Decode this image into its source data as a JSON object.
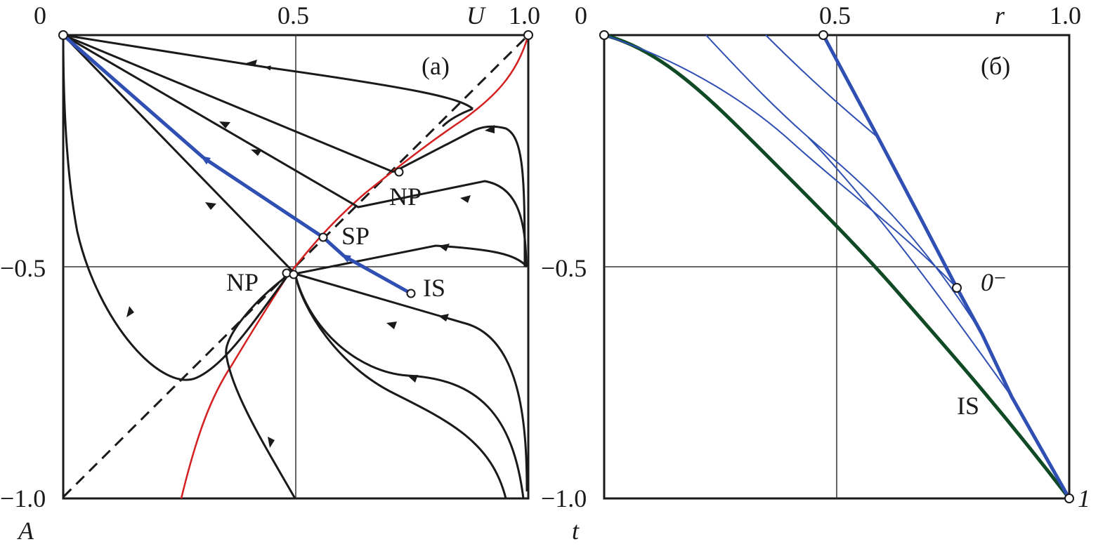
{
  "panel_a": {
    "label": "(a)",
    "top_ticks": [
      "0",
      "0.5",
      "1.0"
    ],
    "left_ticks": [
      "−0.5",
      "−1.0"
    ],
    "axis_label_top": "U",
    "axis_label_left": "A",
    "points": {
      "np_upper": "NP",
      "sp": "SP",
      "np_lower": "NP",
      "is": "IS"
    }
  },
  "panel_b": {
    "label": "(б)",
    "top_ticks": [
      "0",
      "0.5",
      "1.0"
    ],
    "left_ticks": [
      "−0.5",
      "−1.0"
    ],
    "axis_label_top": "r",
    "axis_label_left": "t",
    "points": {
      "zero_minus": "0⁻",
      "one": "1",
      "is": "IS"
    }
  },
  "colors": {
    "trajectory": "#1a1a1a",
    "separatrix_blue": "#2f4fb3",
    "red_curve": "#d42020",
    "green_curve": "#0f4a25",
    "grid": "#333333"
  }
}
